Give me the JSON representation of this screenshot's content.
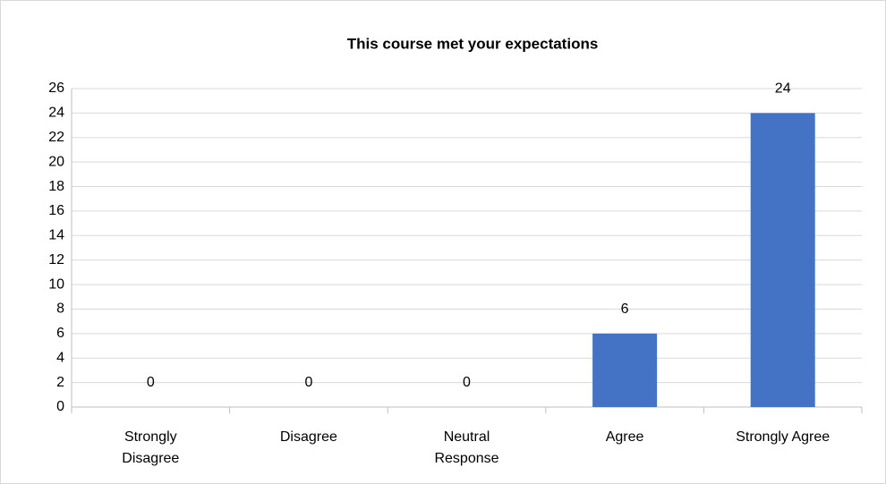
{
  "chart_data": {
    "type": "bar",
    "title": "This course met your expectations",
    "categories": [
      "Strongly Disagree",
      "Disagree",
      "Neutral Response",
      "Agree",
      "Strongly Agree"
    ],
    "values": [
      0,
      0,
      0,
      6,
      24
    ],
    "color": "#4472c4",
    "ylim": [
      0,
      26
    ],
    "yticks": [
      0,
      2,
      4,
      6,
      8,
      10,
      12,
      14,
      16,
      18,
      20,
      22,
      24,
      26
    ],
    "grid": true
  }
}
